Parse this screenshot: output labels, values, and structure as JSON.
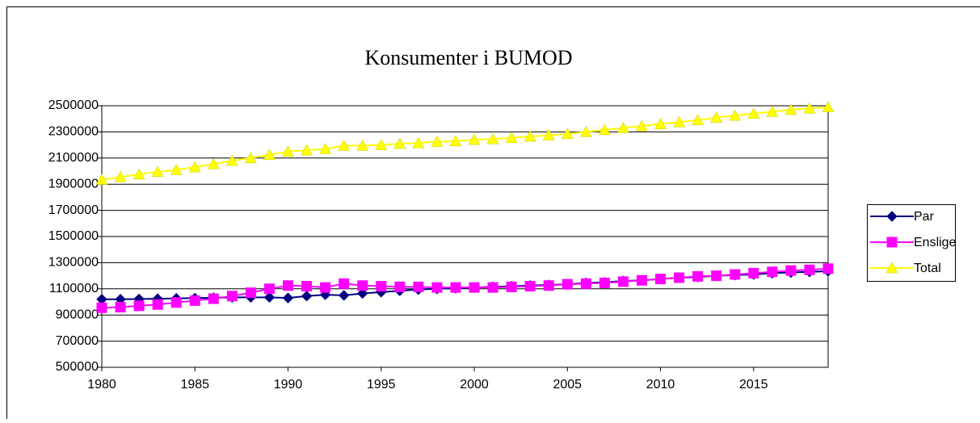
{
  "chart_data": {
    "type": "line",
    "title": "Konsumenter i BUMOD",
    "x": [
      1980,
      1981,
      1982,
      1983,
      1984,
      1985,
      1986,
      1987,
      1988,
      1989,
      1990,
      1991,
      1992,
      1993,
      1994,
      1995,
      1996,
      1997,
      1998,
      1999,
      2000,
      2001,
      2002,
      2003,
      2004,
      2005,
      2006,
      2007,
      2008,
      2009,
      2010,
      2011,
      2012,
      2013,
      2014,
      2015,
      2016,
      2017,
      2018,
      2019
    ],
    "xlim": [
      1980,
      2019
    ],
    "xticks": [
      1980,
      1985,
      1990,
      1995,
      2000,
      2005,
      2010,
      2015
    ],
    "ylim": [
      500000,
      2500000
    ],
    "yticks": [
      500000,
      700000,
      900000,
      1100000,
      1300000,
      1500000,
      1700000,
      1900000,
      2100000,
      2300000,
      2500000
    ],
    "grid": true,
    "legend": "right",
    "series": [
      {
        "name": "Par",
        "color": "#000080",
        "marker": "diamond",
        "values": [
          1020000,
          1020000,
          1022000,
          1024000,
          1027000,
          1029000,
          1032000,
          1035000,
          1035000,
          1035000,
          1030000,
          1045000,
          1055000,
          1050000,
          1065000,
          1075000,
          1085000,
          1095000,
          1100000,
          1105000,
          1110000,
          1115000,
          1120000,
          1125000,
          1130000,
          1135000,
          1145000,
          1150000,
          1160000,
          1165000,
          1175000,
          1185000,
          1190000,
          1200000,
          1205000,
          1210000,
          1220000,
          1225000,
          1230000,
          1235000
        ]
      },
      {
        "name": "Enslige",
        "color": "#ff00ff",
        "marker": "square",
        "values": [
          955000,
          960000,
          970000,
          980000,
          995000,
          1010000,
          1025000,
          1045000,
          1070000,
          1100000,
          1125000,
          1120000,
          1110000,
          1140000,
          1125000,
          1120000,
          1115000,
          1115000,
          1110000,
          1110000,
          1110000,
          1110000,
          1115000,
          1120000,
          1125000,
          1135000,
          1140000,
          1145000,
          1155000,
          1165000,
          1175000,
          1185000,
          1195000,
          1200000,
          1210000,
          1220000,
          1230000,
          1240000,
          1245000,
          1255000
        ]
      },
      {
        "name": "Total",
        "color": "#ffff00",
        "marker": "triangle",
        "values": [
          1935000,
          1955000,
          1975000,
          1995000,
          2010000,
          2030000,
          2055000,
          2080000,
          2100000,
          2125000,
          2150000,
          2160000,
          2170000,
          2195000,
          2195000,
          2200000,
          2210000,
          2215000,
          2225000,
          2230000,
          2240000,
          2245000,
          2255000,
          2265000,
          2275000,
          2285000,
          2300000,
          2315000,
          2330000,
          2345000,
          2360000,
          2375000,
          2390000,
          2410000,
          2425000,
          2440000,
          2455000,
          2470000,
          2480000,
          2490000
        ]
      }
    ]
  }
}
